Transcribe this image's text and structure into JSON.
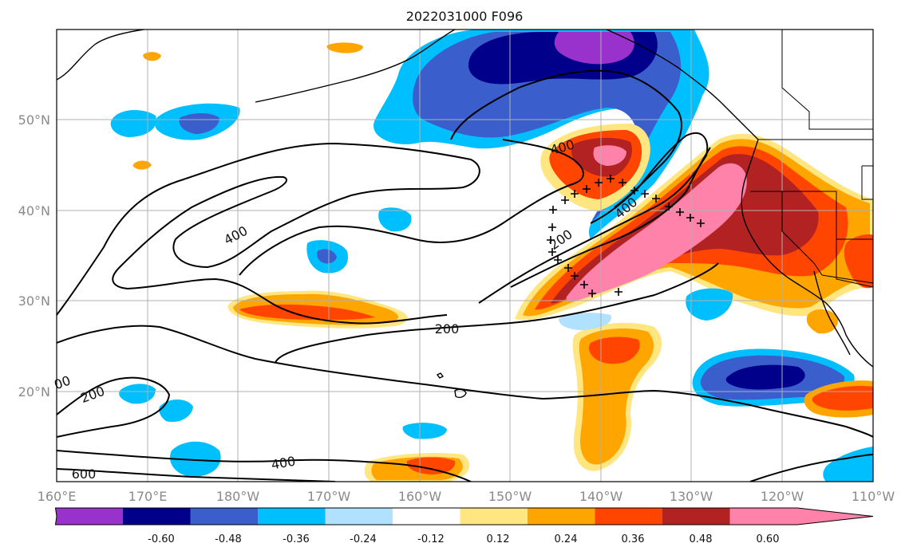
{
  "title": "2022031000 F096",
  "map": {
    "lon_range": [
      160,
      250
    ],
    "lat_range": [
      10,
      60
    ],
    "x_ticks": [
      "160°E",
      "170°E",
      "180°W",
      "170°W",
      "160°W",
      "150°W",
      "140°W",
      "130°W",
      "120°W",
      "110°W"
    ],
    "y_ticks": [
      "20°N",
      "30°N",
      "40°N",
      "50°N"
    ],
    "grid": true
  },
  "colorbar": {
    "levels": [
      "-0.60",
      "-0.48",
      "-0.36",
      "-0.24",
      "-0.12",
      "0.12",
      "0.24",
      "0.36",
      "0.48",
      "0.60"
    ],
    "colors": [
      "#9932cc",
      "#00008b",
      "#3a5fcd",
      "#00bfff",
      "#b0e2ff",
      "#ffffff",
      "#ffe680",
      "#ffa500",
      "#ff4500",
      "#b22222",
      "#ff82ab"
    ]
  },
  "contours": {
    "color": "#000000",
    "labels": [
      "400",
      "400",
      "400",
      "200",
      "200",
      "200",
      "400",
      "600",
      "00"
    ]
  }
}
